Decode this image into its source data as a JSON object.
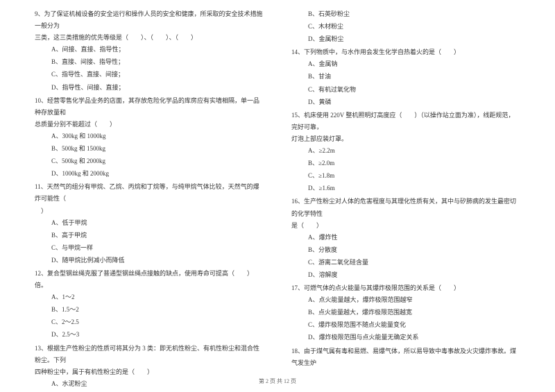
{
  "fontsize": 9,
  "text_color": "#333333",
  "background_color": "#ffffff",
  "line_height": 1.9,
  "left_column": {
    "q9": {
      "text_line1": "9、为了保证机械设备的安全运行和操作人员的安全和健康，所采取的安全技术措施一般分为",
      "text_line2": "三类，这三类措施的优先等级是（　　）、（　　）、（　　）",
      "options": {
        "a": "A、间接、直接、指导性；",
        "b": "B、直接、间接、指导性；",
        "c": "C、指导性、直接、间接；",
        "d": "D、指导性、间接、直接；"
      }
    },
    "q10": {
      "text_line1": "10、经营零售化学品业务的店面，其存放危险化学品的库房应有实墙相隔，单一品种存放量和",
      "text_line2": "总质量分别不能超过（　　）",
      "options": {
        "a": "A、300kg 和 1000kg",
        "b": "B、500kg 和 1500kg",
        "c": "C、500kg 和 2000kg",
        "d": "D、1000kg 和 2000kg"
      }
    },
    "q11": {
      "text_line1": "11、天然气的组分有甲烷、乙烷、丙烷和丁烷等，与纯甲烷气体比较，天然气的爆炸可能性（",
      "text_line2": "　）",
      "options": {
        "a": "A、低于甲烷",
        "b": "B、高于甲烷",
        "c": "C、与甲烷一样",
        "d": "D、随甲烷比例减小而降低"
      }
    },
    "q12": {
      "text": "12、复合型钢丝绳克服了普通型钢丝绳点接触的缺点，使用寿命可提高（　　）倍。",
      "options": {
        "a": "A、1～2",
        "b": "B、1.5～2",
        "c": "C、2～2.5",
        "d": "D、2.5～3"
      }
    },
    "q13": {
      "text_line1": "13、根据生产性粉尘的性质可将其分为 3 类：即无机性粉尘、有机性粉尘和混合性粉尘。下列",
      "text_line2": "四种粉尘中，属于有机性粉尘的是（　　）",
      "options": {
        "a": "A、水泥粉尘"
      }
    }
  },
  "right_column": {
    "q13_cont": {
      "options": {
        "b": "B、石英砂粉尘",
        "c": "C、木材粉尘",
        "d": "D、金属粉尘"
      }
    },
    "q14": {
      "text": "14、下列物质中，与水作用会发生化学自热着火的是（　　）",
      "options": {
        "a": "A、金属钠",
        "b": "B、甘油",
        "c": "C、有机过氧化物",
        "d": "D、黄磷"
      }
    },
    "q15": {
      "text_line1": "15、机床使用 220V 整机照明灯高度应（　　）（以操作站立面为准），线距规范，完好可靠，",
      "text_line2": "灯泡上部应装灯罩。",
      "options": {
        "a": "A、≥2.2m",
        "b": "B、≥2.0m",
        "c": "C、≥1.8m",
        "d": "D、≥1.6m"
      }
    },
    "q16": {
      "text_line1": "16、生产性粉尘对人体的危害程度与其理化性质有关，其中与矽肺病的发生最密切的化学特性",
      "text_line2": "是（　　）",
      "options": {
        "a": "A、爆炸性",
        "b": "B、分散度",
        "c": "C、游离二氧化硅含量",
        "d": "D、溶解度"
      }
    },
    "q17": {
      "text": "17、可燃气体的点火能量与其爆炸极限范围的关系是（　　）",
      "options": {
        "a": "A、点火能量越大，爆炸极限范围越窄",
        "b": "B、点火能量越大，爆炸极限范围越宽",
        "c": "C、爆炸极限范围不随点火能量变化",
        "d": "D、爆炸极限范围与点火能量无确定关系"
      }
    },
    "q18": {
      "text": "18、由于煤气属有毒和易燃、易爆气体，所以易导致中毒事故及火灾爆炸事故。煤气发生炉"
    }
  },
  "footer": "第 2 页 共 12 页"
}
